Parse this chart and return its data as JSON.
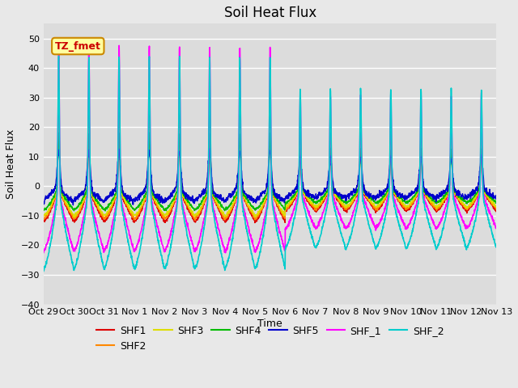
{
  "title": "Soil Heat Flux",
  "ylabel": "Soil Heat Flux",
  "xlabel": "Time",
  "annotation_text": "TZ_fmet",
  "annotation_bg": "#FFFFA0",
  "annotation_border": "#CC8800",
  "ylim": [
    -40,
    55
  ],
  "yticks": [
    -40,
    -30,
    -20,
    -10,
    0,
    10,
    20,
    30,
    40,
    50
  ],
  "x_tick_labels": [
    "Oct 29",
    "Oct 30",
    "Oct 31",
    "Nov 1",
    "Nov 2",
    "Nov 3",
    "Nov 4",
    "Nov 5",
    "Nov 6",
    "Nov 7",
    "Nov 8",
    "Nov 9",
    "Nov 10",
    "Nov 11",
    "Nov 12",
    "Nov 13"
  ],
  "series": [
    {
      "name": "SHF1",
      "color": "#DD0000"
    },
    {
      "name": "SHF2",
      "color": "#FF8800"
    },
    {
      "name": "SHF3",
      "color": "#DDDD00"
    },
    {
      "name": "SHF4",
      "color": "#00BB00"
    },
    {
      "name": "SHF5",
      "color": "#0000CC"
    },
    {
      "name": "SHF_1",
      "color": "#FF00FF"
    },
    {
      "name": "SHF_2",
      "color": "#00CCCC"
    }
  ],
  "bg_color": "#E8E8E8",
  "plot_bg": "#DCDCDC",
  "grid_color": "#FFFFFF",
  "title_fontsize": 12,
  "axis_label_fontsize": 9,
  "tick_fontsize": 8,
  "legend_fontsize": 9
}
